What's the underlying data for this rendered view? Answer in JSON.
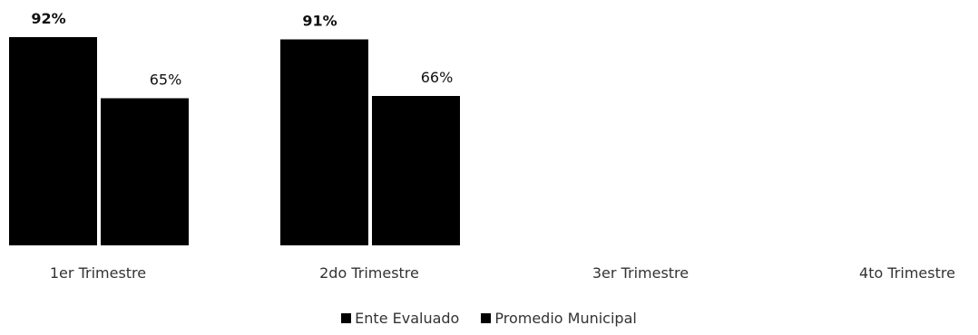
{
  "chart_data": {
    "type": "bar",
    "categories": [
      "1er Trimestre",
      "2do Trimestre",
      "3er Trimestre",
      "4to Trimestre"
    ],
    "series": [
      {
        "name": "Ente Evaluado",
        "values": [
          92,
          91,
          null,
          null
        ],
        "labels": [
          "92%",
          "91%",
          null,
          null
        ],
        "color": "#000000"
      },
      {
        "name": "Promedio Municipal",
        "values": [
          65,
          66,
          null,
          null
        ],
        "labels": [
          "65%",
          "66%",
          null,
          null
        ],
        "color": "#000000"
      }
    ],
    "ylim": [
      0,
      100
    ],
    "grid": false,
    "legend_position": "bottom-center",
    "title": "",
    "xlabel": "",
    "ylabel": ""
  }
}
